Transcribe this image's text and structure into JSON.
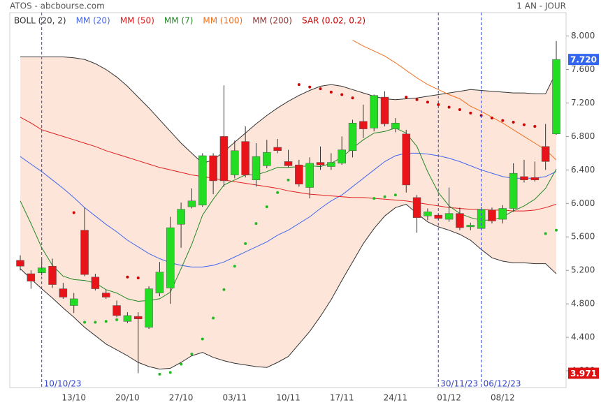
{
  "chart_data": {
    "type": "candlestick",
    "title": "ATOS - abcbourse.com",
    "subtitle": "1 AN - JOUR",
    "categories": [
      null,
      null,
      null,
      null,
      null,
      "13/10",
      null,
      null,
      null,
      null,
      "20/10",
      null,
      null,
      null,
      null,
      "27/10",
      null,
      null,
      null,
      null,
      "03/11",
      null,
      null,
      null,
      null,
      "10/11",
      null,
      null,
      null,
      null,
      "17/11",
      null,
      null,
      null,
      null,
      "24/11",
      null,
      null,
      null,
      null,
      "01/12",
      null,
      null,
      null,
      null,
      "08/12",
      null,
      null,
      null,
      null,
      null
    ],
    "open": [
      5.32,
      5.16,
      5.17,
      5.25,
      4.98,
      4.78,
      5.68,
      5.12,
      4.93,
      4.78,
      4.59,
      4.65,
      4.52,
      4.93,
      4.99,
      5.75,
      5.96,
      5.98,
      6.57,
      6.8,
      6.34,
      6.74,
      6.28,
      6.45,
      6.67,
      6.5,
      6.46,
      6.19,
      6.49,
      6.44,
      6.48,
      6.63,
      6.98,
      6.9,
      7.27,
      6.89,
      6.83,
      6.07,
      5.85,
      5.86,
      5.81,
      5.88,
      5.72,
      5.7,
      5.92,
      5.81,
      5.94,
      6.32,
      6.31,
      6.68,
      6.83
    ],
    "high": [
      5.38,
      5.2,
      5.34,
      5.34,
      5.05,
      4.93,
      5.95,
      5.16,
      4.97,
      4.84,
      4.7,
      4.7,
      5.01,
      5.3,
      5.84,
      6.01,
      6.18,
      6.6,
      6.6,
      7.41,
      6.75,
      6.92,
      6.72,
      6.76,
      6.77,
      6.64,
      6.52,
      6.55,
      6.68,
      6.6,
      6.8,
      7.0,
      7.18,
      7.3,
      7.34,
      7.02,
      6.88,
      6.1,
      5.94,
      5.88,
      6.19,
      5.95,
      5.77,
      5.96,
      5.95,
      5.98,
      6.48,
      6.52,
      6.5,
      6.95,
      7.94
    ],
    "low": [
      5.2,
      4.98,
      5.14,
      4.99,
      4.86,
      4.69,
      5.13,
      4.96,
      4.86,
      4.64,
      4.57,
      3.971,
      4.5,
      4.89,
      4.8,
      5.47,
      5.94,
      5.96,
      6.11,
      6.2,
      6.3,
      6.31,
      6.2,
      6.42,
      6.6,
      6.43,
      6.2,
      6.06,
      6.4,
      6.4,
      6.46,
      6.55,
      6.78,
      6.86,
      6.92,
      6.85,
      6.13,
      5.65,
      5.8,
      5.8,
      5.78,
      5.68,
      5.68,
      5.68,
      5.76,
      5.76,
      5.9,
      6.25,
      6.26,
      6.4,
      6.82
    ],
    "close": [
      5.25,
      5.07,
      5.23,
      5.03,
      4.88,
      4.86,
      5.15,
      4.98,
      4.88,
      4.66,
      4.66,
      4.62,
      4.98,
      5.18,
      5.71,
      5.93,
      6.03,
      6.57,
      6.27,
      6.27,
      6.63,
      6.34,
      6.56,
      6.61,
      6.63,
      6.45,
      6.23,
      6.48,
      6.46,
      6.49,
      6.64,
      6.96,
      6.89,
      7.29,
      6.95,
      6.96,
      6.22,
      5.83,
      5.9,
      5.82,
      5.88,
      5.71,
      5.74,
      5.93,
      5.79,
      5.94,
      6.36,
      6.28,
      6.28,
      6.5,
      7.72
    ],
    "up_color": "#22dd22",
    "down_color": "#e8141a",
    "ylim": [
      3.8,
      8.28
    ],
    "yticks": [
      {
        "value": 4,
        "label": "4.000"
      },
      {
        "value": 4.4,
        "label": "4.400"
      },
      {
        "value": 4.8,
        "label": "4.800"
      },
      {
        "value": 5.2,
        "label": "5.200"
      },
      {
        "value": 5.6,
        "label": "5.600"
      },
      {
        "value": 6,
        "label": "6.000"
      },
      {
        "value": 6.4,
        "label": "6.400"
      },
      {
        "value": 6.8,
        "label": "6.800"
      },
      {
        "value": 7.2,
        "label": "7.200"
      },
      {
        "value": 7.6,
        "label": "7.600"
      },
      {
        "value": 8,
        "label": "8.000"
      }
    ],
    "bollinger": {
      "name": "BOLL (20, 2)",
      "color": "#333333",
      "fill": "#fde5d9",
      "upper": [
        7.75,
        7.75,
        7.75,
        7.75,
        7.75,
        7.74,
        7.72,
        7.67,
        7.6,
        7.51,
        7.4,
        7.27,
        7.14,
        7.0,
        6.86,
        6.72,
        6.6,
        6.48,
        6.52,
        6.62,
        6.73,
        6.84,
        6.95,
        7.05,
        7.14,
        7.22,
        7.29,
        7.35,
        7.4,
        7.42,
        7.4,
        7.36,
        7.32,
        7.28,
        7.25,
        7.24,
        7.25,
        7.26,
        7.28,
        7.3,
        7.32,
        7.34,
        7.36,
        7.35,
        7.34,
        7.33,
        7.32,
        7.32,
        7.31,
        7.31,
        7.57
      ],
      "lower": [
        5.22,
        5.1,
        4.98,
        4.87,
        4.75,
        4.64,
        4.52,
        4.42,
        4.32,
        4.25,
        4.18,
        4.1,
        4.05,
        4.02,
        4.03,
        4.1,
        4.18,
        4.22,
        4.16,
        4.12,
        4.09,
        4.07,
        4.05,
        4.04,
        4.1,
        4.17,
        4.32,
        4.47,
        4.65,
        4.85,
        5.08,
        5.3,
        5.52,
        5.7,
        5.85,
        5.95,
        5.99,
        5.88,
        5.78,
        5.72,
        5.68,
        5.63,
        5.56,
        5.45,
        5.35,
        5.31,
        5.29,
        5.29,
        5.28,
        5.28,
        5.16
      ]
    },
    "series": [
      {
        "name": "MM (20)",
        "color": "#4466ee",
        "values": [
          6.56,
          6.47,
          6.38,
          6.28,
          6.18,
          6.07,
          5.95,
          5.85,
          5.75,
          5.66,
          5.56,
          5.48,
          5.4,
          5.34,
          5.29,
          5.26,
          5.24,
          5.24,
          5.26,
          5.3,
          5.36,
          5.42,
          5.48,
          5.54,
          5.62,
          5.68,
          5.76,
          5.84,
          5.94,
          6.03,
          6.1,
          6.2,
          6.3,
          6.4,
          6.5,
          6.57,
          6.6,
          6.6,
          6.59,
          6.57,
          6.54,
          6.5,
          6.45,
          6.4,
          6.36,
          6.32,
          6.3,
          6.3,
          6.3,
          6.32,
          6.38
        ]
      },
      {
        "name": "MM (50)",
        "color": "#e02020",
        "values": [
          7.03,
          6.96,
          6.88,
          6.84,
          6.8,
          6.76,
          6.72,
          6.68,
          6.63,
          6.59,
          6.55,
          6.51,
          6.47,
          6.43,
          6.4,
          6.37,
          6.34,
          6.32,
          6.3,
          6.28,
          6.26,
          6.24,
          6.22,
          6.2,
          6.18,
          6.15,
          6.13,
          6.11,
          6.1,
          6.09,
          6.08,
          6.07,
          6.07,
          6.06,
          6.05,
          6.04,
          6.03,
          6.01,
          5.99,
          5.97,
          5.95,
          5.94,
          5.93,
          5.93,
          5.92,
          5.92,
          5.91,
          5.91,
          5.92,
          5.95,
          5.99
        ]
      },
      {
        "name": "MM (7)",
        "color": "#228822",
        "values": [
          6.03,
          5.76,
          5.47,
          5.26,
          5.13,
          5.09,
          5.08,
          5.05,
          4.97,
          4.93,
          4.86,
          4.83,
          4.84,
          4.86,
          4.94,
          5.22,
          5.51,
          5.86,
          6.05,
          6.22,
          6.28,
          6.34,
          6.34,
          6.38,
          6.43,
          6.43,
          6.44,
          6.45,
          6.44,
          6.48,
          6.55,
          6.66,
          6.76,
          6.84,
          6.86,
          6.9,
          6.84,
          6.68,
          6.38,
          6.13,
          5.97,
          5.88,
          5.83,
          5.8,
          5.8,
          5.84,
          5.91,
          5.97,
          6.05,
          6.18,
          6.41
        ]
      },
      {
        "name": "MM (100)",
        "color": "#f07020",
        "values": [
          null,
          null,
          null,
          null,
          null,
          null,
          null,
          null,
          null,
          null,
          null,
          null,
          null,
          null,
          null,
          null,
          null,
          null,
          null,
          null,
          null,
          null,
          null,
          null,
          null,
          null,
          null,
          null,
          null,
          null,
          null,
          7.95,
          7.88,
          7.82,
          7.76,
          7.68,
          7.59,
          7.5,
          7.42,
          7.36,
          7.3,
          7.25,
          7.16,
          7.1,
          7.03,
          6.96,
          6.88,
          6.8,
          6.72,
          6.64,
          6.52
        ]
      },
      {
        "name": "MM (200)",
        "color": "#993333"
      }
    ],
    "sar": {
      "name": "SAR (0.02, 0.2)",
      "color": "#cc0000",
      "below_color": "#22bb22",
      "values": [
        null,
        null,
        null,
        null,
        null,
        5.89,
        4.58,
        4.58,
        4.59,
        4.61,
        5.12,
        5.11,
        null,
        3.96,
        3.98,
        4.08,
        4.2,
        4.38,
        4.63,
        4.97,
        5.25,
        5.52,
        5.76,
        5.96,
        6.13,
        6.28,
        7.42,
        7.39,
        7.37,
        7.33,
        7.3,
        7.26,
        null,
        6.06,
        6.08,
        6.1,
        7.27,
        7.24,
        7.21,
        7.18,
        7.15,
        7.12,
        7.08,
        7.05,
        7.02,
        6.99,
        6.97,
        6.94,
        6.92,
        5.64,
        5.68
      ]
    },
    "markers": [
      {
        "category_index": 2,
        "label": "10/10/23"
      },
      {
        "category_index": 39,
        "label": "30/11/23"
      },
      {
        "category_index": 43,
        "label": "06/12/23"
      }
    ],
    "marker_color": "#3344cc",
    "last_price": {
      "value": 7.72,
      "label": "7.720",
      "color": "#3366ee"
    },
    "low_price": {
      "value": 3.971,
      "label": "3.971",
      "color": "#dd1111"
    }
  }
}
